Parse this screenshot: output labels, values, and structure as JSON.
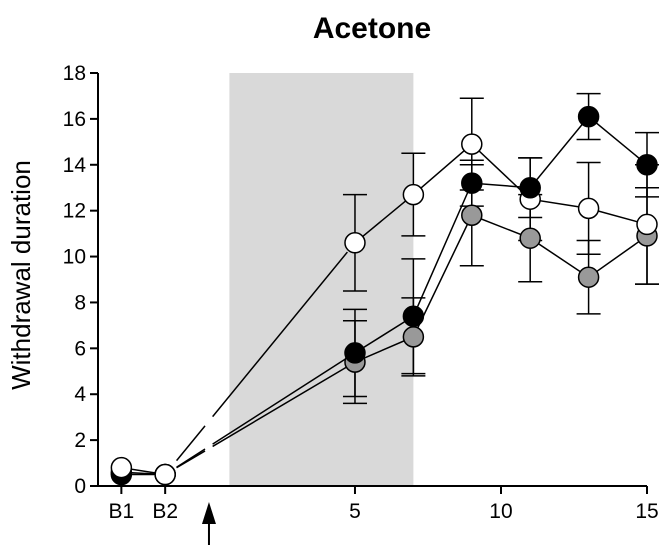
{
  "chart_data": {
    "type": "line",
    "title": "Acetone",
    "xlabel": "",
    "ylabel": "Withdrawal duration",
    "ylim": [
      0,
      18
    ],
    "yticks": [
      0,
      2,
      4,
      6,
      8,
      10,
      12,
      14,
      16,
      18
    ],
    "xlim": [
      -3.8,
      15
    ],
    "xticks": [
      {
        "value": -3,
        "label": "B1"
      },
      {
        "value": -1.5,
        "label": "B2"
      },
      {
        "value": 5,
        "label": "5"
      },
      {
        "value": 10,
        "label": "10"
      },
      {
        "value": 15,
        "label": "15"
      }
    ],
    "treatment_marker": {
      "x": 0,
      "shape": "arrow-up"
    },
    "shaded_region": {
      "from": 0.7,
      "to": 7,
      "color": "#d9d9d9"
    },
    "grid": false,
    "colors": {
      "black": "#000000",
      "gray": "#999999",
      "white": "#ffffff",
      "shade": "#d9d9d9"
    },
    "series": [
      {
        "fill": "#000000",
        "baseline": [
          {
            "x": -3,
            "y": 0.5
          },
          {
            "x": -1.5,
            "y": 0.5
          }
        ],
        "points": [
          {
            "x": 5,
            "y": 5.8,
            "err": 1.9
          },
          {
            "x": 7,
            "y": 7.4,
            "err": 2.5
          },
          {
            "x": 9,
            "y": 13.2,
            "err": 1.0
          },
          {
            "x": 11,
            "y": 13.0,
            "err": 1.3
          },
          {
            "x": 13,
            "y": 16.1,
            "err": 1.0
          },
          {
            "x": 15,
            "y": 14.0,
            "err": 1.4
          }
        ]
      },
      {
        "fill": "#999999",
        "baseline": [
          {
            "x": -3,
            "y": 0.6
          },
          {
            "x": -1.5,
            "y": 0.5
          }
        ],
        "points": [
          {
            "x": 5,
            "y": 5.4,
            "err": 1.8
          },
          {
            "x": 7,
            "y": 6.5,
            "err": 1.7
          },
          {
            "x": 9,
            "y": 11.8,
            "err": 2.2
          },
          {
            "x": 11,
            "y": 10.8,
            "err": 1.9
          },
          {
            "x": 13,
            "y": 9.1,
            "err": 1.6
          },
          {
            "x": 15,
            "y": 10.9,
            "err": 2.1
          }
        ]
      },
      {
        "fill": "#ffffff",
        "baseline": [
          {
            "x": -3,
            "y": 0.8
          },
          {
            "x": -1.5,
            "y": 0.5
          }
        ],
        "points": [
          {
            "x": 5,
            "y": 10.6,
            "err": 2.1
          },
          {
            "x": 7,
            "y": 12.7,
            "err": 1.8
          },
          {
            "x": 9,
            "y": 14.9,
            "err": 2.0
          },
          {
            "x": 11,
            "y": 12.5,
            "err": 1.8
          },
          {
            "x": 13,
            "y": 12.1,
            "err": 2.0
          },
          {
            "x": 15,
            "y": 11.4,
            "err": 2.6
          }
        ]
      }
    ]
  }
}
